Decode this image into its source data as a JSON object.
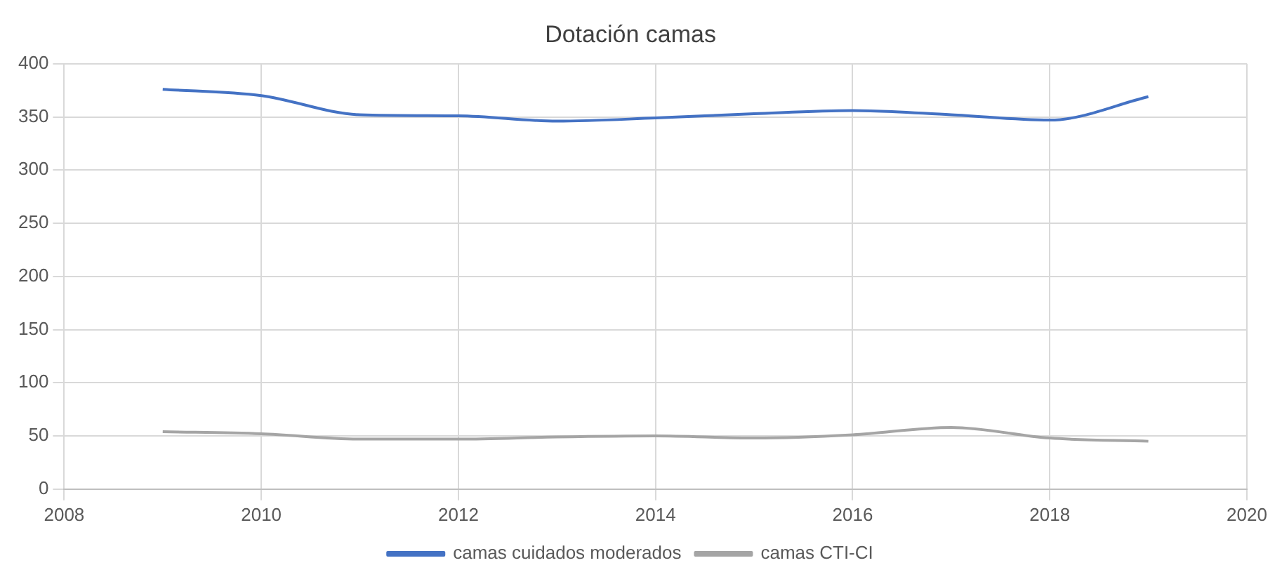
{
  "chart_data": {
    "type": "line",
    "title": "Dotación camas",
    "x": [
      2009,
      2010,
      2011,
      2012,
      2013,
      2014,
      2015,
      2016,
      2017,
      2018,
      2019
    ],
    "series": [
      {
        "name": "camas cuidados moderados",
        "color": "#4472c4",
        "values": [
          376,
          370,
          352,
          351,
          346,
          349,
          353,
          356,
          352,
          347,
          369
        ]
      },
      {
        "name": "camas CTI-CI",
        "color": "#a5a5a5",
        "values": [
          54,
          52,
          47,
          47,
          49,
          50,
          48,
          51,
          58,
          48,
          45
        ]
      }
    ],
    "xlim": [
      2008,
      2020
    ],
    "xticks": [
      2008,
      2010,
      2012,
      2014,
      2016,
      2018,
      2020
    ],
    "ylim": [
      0,
      400
    ],
    "yticks": [
      0,
      50,
      100,
      150,
      200,
      250,
      300,
      350,
      400
    ],
    "grid": true,
    "legend": "bottom",
    "marker": "none",
    "line_style": "solid"
  }
}
